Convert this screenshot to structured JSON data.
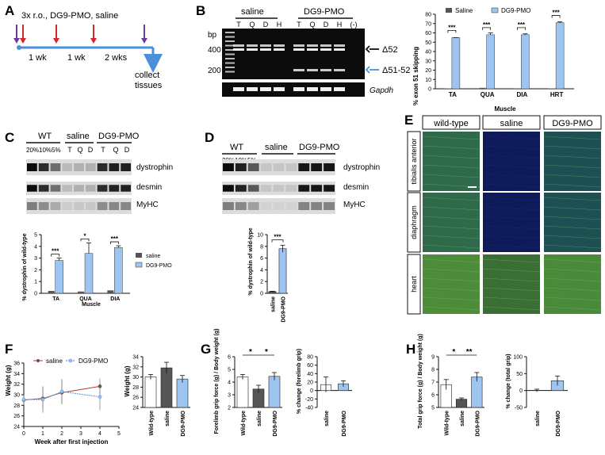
{
  "panel_labels": {
    "A": "A",
    "B": "B",
    "C": "C",
    "D": "D",
    "E": "E",
    "F": "F",
    "G": "G",
    "H": "H"
  },
  "panelA": {
    "header": "3x r.o., DG9-PMO, saline",
    "intervals": [
      "1 wk",
      "1 wk",
      "2 wks"
    ],
    "end_label_1": "collect",
    "end_label_2": "tissues",
    "colors": {
      "timeline": "#4a90d9",
      "red_arrow": "#d62728",
      "purple_arrow": "#6a3d9a"
    }
  },
  "panelB": {
    "groups": [
      "saline",
      "DG9-PMO"
    ],
    "lanes": [
      "T",
      "Q",
      "D",
      "H",
      "T",
      "Q",
      "D",
      "H",
      "(-)"
    ],
    "ladder_unit": "bp",
    "ladder_marks": [
      "400",
      "200"
    ],
    "band_labels": [
      "Δ52",
      "Δ51-52"
    ],
    "loading_label": "Gapdh",
    "chart_data": {
      "type": "bar",
      "legend": [
        "Saline",
        "DG9-PMO"
      ],
      "categories": [
        "TA",
        "QUA",
        "DIA",
        "HRT"
      ],
      "series": [
        {
          "name": "Saline",
          "values": [
            0.4,
            1.0,
            0.3,
            0.4
          ]
        },
        {
          "name": "DG9-PMO",
          "values": [
            55,
            58,
            58,
            71
          ]
        }
      ],
      "errors": [
        0,
        2,
        1,
        1
      ],
      "ylabel": "% exon 51 skipping",
      "xlabel": "Muscle",
      "ylim": [
        0,
        80
      ],
      "yticks": [
        "0",
        "10",
        "20",
        "30",
        "40",
        "50",
        "60",
        "70",
        "80"
      ],
      "significance": [
        "***",
        "***",
        "***",
        "***"
      ],
      "colors": {
        "Saline": "#555555",
        "DG9-PMO": "#9ec5ef"
      }
    }
  },
  "panelC": {
    "wt_label": "WT",
    "wt_lanes": [
      "20%",
      "10%",
      "5%"
    ],
    "groups": [
      "saline",
      "DG9-PMO"
    ],
    "lanes": [
      "T",
      "Q",
      "D",
      "T",
      "Q",
      "D"
    ],
    "blots": [
      "dystrophin",
      "desmin",
      "MyHC"
    ],
    "chart_data": {
      "type": "bar",
      "legend": [
        "saline",
        "DG9-PMO"
      ],
      "categories": [
        "TA",
        "QUA",
        "DIA"
      ],
      "series": [
        {
          "name": "saline",
          "values": [
            0.2,
            0.15,
            0.25
          ]
        },
        {
          "name": "DG9-PMO",
          "values": [
            2.8,
            3.4,
            3.9
          ]
        }
      ],
      "ylabel": "% dystrophin of wild-type",
      "xlabel": "Muscle",
      "ylim": [
        0,
        5
      ],
      "yticks": [
        "0",
        "1",
        "2",
        "3",
        "4",
        "5"
      ],
      "significance": [
        "***",
        "*",
        "***"
      ]
    }
  },
  "panelD": {
    "wt_label": "WT",
    "wt_lanes": [
      "20%",
      "10%",
      "5%"
    ],
    "groups": [
      "saline",
      "DG9-PMO"
    ],
    "blots": [
      "dystrophin",
      "desmin",
      "MyHC"
    ],
    "chart_data": {
      "type": "bar",
      "categories": [
        "saline",
        "DG9-PMO"
      ],
      "values": [
        0.3,
        7.6
      ],
      "ylabel": "% dystrophin of wild-type",
      "ylim": [
        0,
        10
      ],
      "yticks": [
        "0",
        "2",
        "4",
        "6",
        "8",
        "10"
      ],
      "significance": "***"
    }
  },
  "panelE": {
    "columns": [
      "wild-type",
      "saline",
      "DG9-PMO"
    ],
    "rows": [
      "tibialis anterior",
      "diaphragm",
      "heart"
    ]
  },
  "panelF": {
    "legend": [
      "saline",
      "DG9-PMO"
    ],
    "chart_data": [
      {
        "type": "line",
        "x": [
          0,
          1,
          2,
          4
        ],
        "series": [
          {
            "name": "saline",
            "values": [
              29,
              29.3,
              30.4,
              31.6
            ]
          },
          {
            "name": "DG9-PMO",
            "values": [
              29.1,
              29.1,
              30.6,
              29.6
            ]
          }
        ],
        "xlabel": "Week after first injection",
        "ylabel": "Weight (g)",
        "xlim": [
          0,
          5
        ],
        "ylim": [
          24,
          36
        ],
        "xticks": [
          "0",
          "1",
          "2",
          "3",
          "4",
          "5"
        ],
        "yticks": [
          "24",
          "26",
          "28",
          "30",
          "32",
          "34",
          "36"
        ],
        "colors": {
          "saline": "#c0392b",
          "DG9-PMO": "#4a90d9"
        }
      },
      {
        "type": "bar",
        "categories": [
          "Wild-type",
          "saline",
          "DG9-PMO"
        ],
        "values": [
          30,
          31.8,
          29.6
        ],
        "ylabel": "Weight (g)",
        "ylim": [
          24,
          34
        ],
        "yticks": [
          "24",
          "26",
          "28",
          "30",
          "32",
          "34"
        ]
      }
    ]
  },
  "panelG": {
    "chart_data": [
      {
        "type": "bar",
        "categories": [
          "Wild-type",
          "saline",
          "DG9-PMO"
        ],
        "values": [
          4.4,
          3.45,
          4.45
        ],
        "ylabel": "Forelimb grip force (g) / Body weight (g)",
        "ylim": [
          2,
          6
        ],
        "yticks": [
          "2",
          "3",
          "4",
          "5",
          "6"
        ],
        "significance": [
          "*",
          "*"
        ]
      },
      {
        "type": "bar",
        "categories": [
          "saline",
          "DG9-PMO"
        ],
        "values": [
          14,
          16
        ],
        "ylabel": "% change (forelimb grip)",
        "ylim": [
          -40,
          80
        ],
        "yticks": [
          "-40",
          "-20",
          "0",
          "20",
          "40",
          "60",
          "80"
        ]
      }
    ]
  },
  "panelH": {
    "chart_data": [
      {
        "type": "bar",
        "categories": [
          "Wild-type",
          "saline",
          "DG9-PMO"
        ],
        "values": [
          6.8,
          5.65,
          7.4
        ],
        "ylabel": "Total grip force (g) / Body weight (g)",
        "ylim": [
          5,
          9
        ],
        "yticks": [
          "5",
          "6",
          "7",
          "8",
          "9"
        ],
        "significance": [
          "*",
          "**"
        ]
      },
      {
        "type": "bar",
        "categories": [
          "saline",
          "DG9-PMO"
        ],
        "values": [
          0,
          29
        ],
        "ylabel": "% change (total grip)",
        "ylim": [
          -50,
          100
        ],
        "yticks": [
          "-50",
          "0",
          "50",
          "100"
        ]
      }
    ]
  }
}
